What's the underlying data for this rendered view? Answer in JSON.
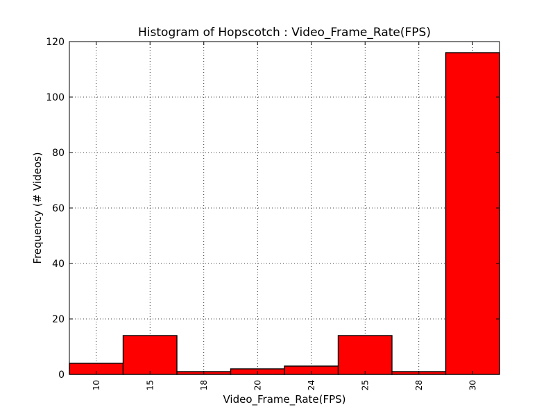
{
  "chart_data": {
    "type": "bar",
    "title": "Histogram of Hopscotch : Video_Frame_Rate(FPS)",
    "xlabel": "Video_Frame_Rate(FPS)",
    "ylabel": "Frequency (# Videos)",
    "categories": [
      "10",
      "15",
      "18",
      "20",
      "24",
      "25",
      "28",
      "30"
    ],
    "values": [
      4,
      14,
      1,
      2,
      3,
      14,
      1,
      116
    ],
    "ylim": [
      0,
      120
    ],
    "yticks": [
      "0",
      "20",
      "40",
      "60",
      "80",
      "100",
      "120"
    ],
    "grid": true,
    "bar_color": "#ff0000",
    "edge_color": "#000000"
  }
}
